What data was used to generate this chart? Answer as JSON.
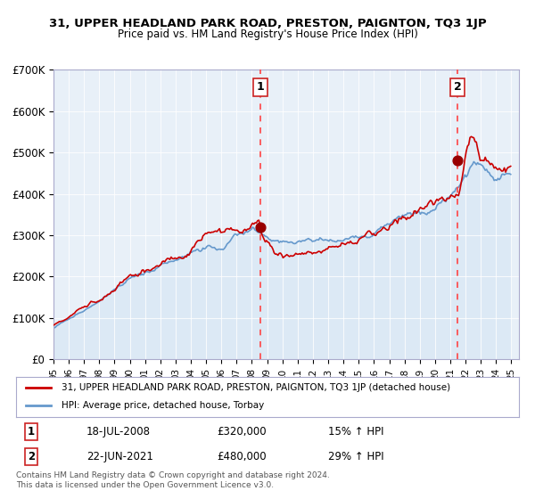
{
  "title": "31, UPPER HEADLAND PARK ROAD, PRESTON, PAIGNTON, TQ3 1JP",
  "subtitle": "Price paid vs. HM Land Registry's House Price Index (HPI)",
  "legend_line1": "31, UPPER HEADLAND PARK ROAD, PRESTON, PAIGNTON, TQ3 1JP (detached house)",
  "legend_line2": "HPI: Average price, detached house, Torbay",
  "transaction1_date": "18-JUL-2008",
  "transaction1_price": 320000,
  "transaction1_hpi": "15% ↑ HPI",
  "transaction2_date": "22-JUN-2021",
  "transaction2_price": 480000,
  "transaction2_hpi": "29% ↑ HPI",
  "footer": "Contains HM Land Registry data © Crown copyright and database right 2024.\nThis data is licensed under the Open Government Licence v3.0.",
  "red_line_color": "#cc0000",
  "blue_line_color": "#6699cc",
  "background_fill": "#dce9f5",
  "grid_color": "#aaaacc",
  "dashed_line_color": "#ff4444",
  "point_color": "#990000",
  "ylim": [
    0,
    700000
  ],
  "yticks": [
    0,
    100000,
    200000,
    300000,
    400000,
    500000,
    600000,
    700000
  ],
  "ytick_labels": [
    "£0",
    "£100K",
    "£200K",
    "£300K",
    "£400K",
    "£500K",
    "£600K",
    "£700K"
  ],
  "x_start_year": 1995,
  "x_end_year": 2025,
  "transaction1_x": 2008.54,
  "transaction2_x": 2021.47
}
